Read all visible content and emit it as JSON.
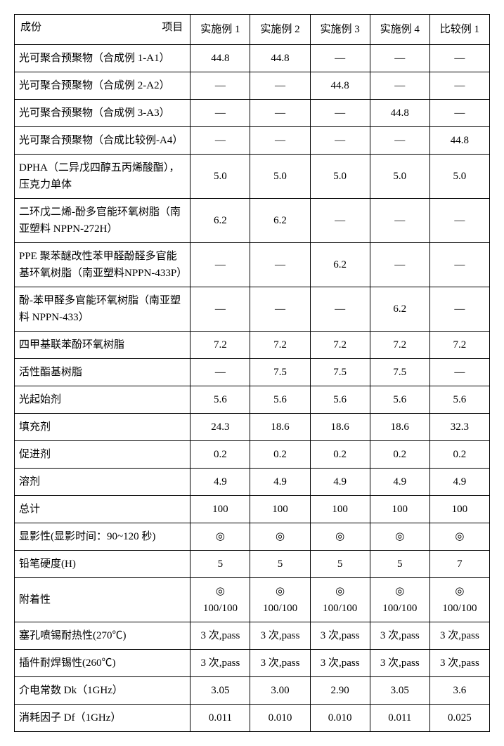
{
  "table": {
    "background_color": "#ffffff",
    "border_color": "#000000",
    "font_family": "SimSun",
    "font_size_pt": 11,
    "header": {
      "corner_left": "成份",
      "corner_right": "项目",
      "cols": [
        "实施例 1",
        "实施例 2",
        "实施例 3",
        "实施例 4",
        "比较例 1"
      ]
    },
    "rows_top": [
      {
        "label": "光可聚合预聚物（合成例 1-A1）",
        "vals": [
          "44.8",
          "44.8",
          "—",
          "—",
          "—"
        ]
      },
      {
        "label": "光可聚合预聚物（合成例 2-A2）",
        "vals": [
          "—",
          "—",
          "44.8",
          "—",
          "—"
        ]
      },
      {
        "label": "光可聚合预聚物（合成例 3-A3）",
        "vals": [
          "—",
          "—",
          "—",
          "44.8",
          "—"
        ]
      },
      {
        "label": "光可聚合预聚物（合成比较例-A4）",
        "vals": [
          "—",
          "—",
          "—",
          "—",
          "44.8"
        ]
      },
      {
        "label": "DPHA（二异戊四醇五丙烯酸酯），压克力单体",
        "vals": [
          "5.0",
          "5.0",
          "5.0",
          "5.0",
          "5.0"
        ]
      },
      {
        "label": "二环戊二烯-酚多官能环氧树脂（南亚塑料 NPPN-272H）",
        "vals": [
          "6.2",
          "6.2",
          "—",
          "—",
          "—"
        ]
      },
      {
        "label": "PPE 聚苯醚改性苯甲醛酚醛多官能基环氧树脂（南亚塑料NPPN-433P）",
        "vals": [
          "—",
          "—",
          "6.2",
          "—",
          "—"
        ]
      },
      {
        "label": "酚-苯甲醛多官能环氧树脂（南亚塑料 NPPN-433）",
        "vals": [
          "—",
          "—",
          "—",
          "6.2",
          "—"
        ]
      },
      {
        "label": "四甲基联苯酚环氧树脂",
        "vals": [
          "7.2",
          "7.2",
          "7.2",
          "7.2",
          "7.2"
        ]
      },
      {
        "label": "活性酯基树脂",
        "vals": [
          "—",
          "7.5",
          "7.5",
          "7.5",
          "—"
        ]
      },
      {
        "label": "光起始剂",
        "vals": [
          "5.6",
          "5.6",
          "5.6",
          "5.6",
          "5.6"
        ]
      },
      {
        "label": "填充剂",
        "vals": [
          "24.3",
          "18.6",
          "18.6",
          "18.6",
          "32.3"
        ]
      },
      {
        "label": "促进剂",
        "vals": [
          "0.2",
          "0.2",
          "0.2",
          "0.2",
          "0.2"
        ]
      },
      {
        "label": "溶剂",
        "vals": [
          "4.9",
          "4.9",
          "4.9",
          "4.9",
          "4.9"
        ]
      },
      {
        "label": "总计",
        "vals": [
          "100",
          "100",
          "100",
          "100",
          "100"
        ]
      }
    ],
    "rows_bottom": [
      {
        "label": "显影性(显影时间：90~120 秒)",
        "vals": [
          "◎",
          "◎",
          "◎",
          "◎",
          "◎"
        ]
      },
      {
        "label": "铅笔硬度(H)",
        "vals": [
          "5",
          "5",
          "5",
          "5",
          "7"
        ]
      },
      {
        "label": "附着性",
        "vals": [
          "◎\n100/100",
          "◎\n100/100",
          "◎\n100/100",
          "◎\n100/100",
          "◎\n100/100"
        ]
      },
      {
        "label": "塞孔喷锡耐热性(270℃)",
        "vals": [
          "3 次,pass",
          "3 次,pass",
          "3 次,pass",
          "3 次,pass",
          "3 次,pass"
        ]
      },
      {
        "label": "插件耐焊锡性(260℃)",
        "vals": [
          "3 次,pass",
          "3 次,pass",
          "3 次,pass",
          "3 次,pass",
          "3 次,pass"
        ]
      },
      {
        "label": "介电常数 Dk（1GHz）",
        "vals": [
          "3.05",
          "3.00",
          "2.90",
          "3.05",
          "3.6"
        ]
      },
      {
        "label": "消耗因子 Df（1GHz）",
        "vals": [
          "0.011",
          "0.010",
          "0.010",
          "0.011",
          "0.025"
        ]
      }
    ]
  }
}
